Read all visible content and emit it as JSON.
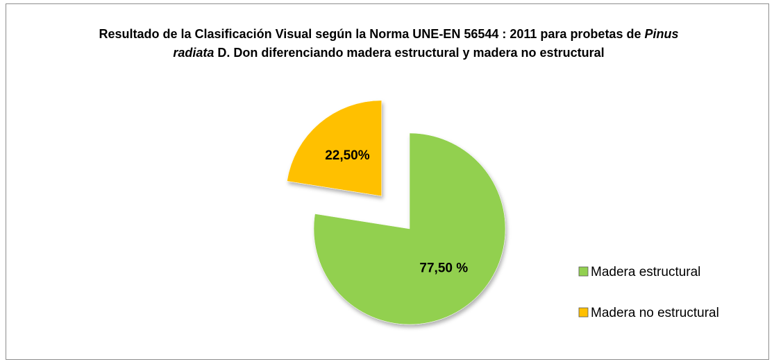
{
  "chart_data": {
    "type": "pie",
    "title": [
      "Resultado de la Clasificación Visual según la Norma UNE-EN 56544 : 2011 para probetas de ",
      "Pinus radiata",
      " D. Don  diferenciando madera estructural y madera no estructural"
    ],
    "categories": [
      "Madera estructural",
      "Madera no estructural"
    ],
    "values": [
      77.5,
      22.5
    ],
    "value_labels": [
      "77,50 %",
      "22,50%"
    ],
    "colors": [
      "#92d050",
      "#ffc000"
    ],
    "exploded": [
      false,
      true
    ],
    "legend": "right"
  }
}
